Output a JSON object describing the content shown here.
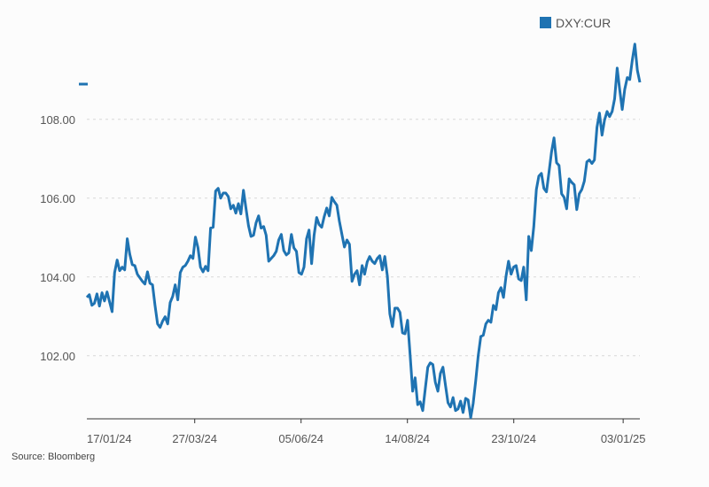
{
  "chart_data": {
    "type": "line",
    "title": "",
    "xlabel": "",
    "ylabel": "",
    "legend": {
      "position": "top-right",
      "entries": [
        "DXY:CUR"
      ]
    },
    "colors": {
      "series": "#1f73b2",
      "grid": "#d8d8d8",
      "axis": "#333333"
    },
    "grid": true,
    "ylim": [
      100.4,
      110.13
    ],
    "x_range": [
      "2024-01-16",
      "2025-01-14"
    ],
    "y_ticks": [
      {
        "value": 102,
        "label": "102.00"
      },
      {
        "value": 104,
        "label": "104.00"
      },
      {
        "value": 106,
        "label": "106.00"
      },
      {
        "value": 108,
        "label": "108.00"
      }
    ],
    "x_ticks": [
      {
        "date": "2024-01-17",
        "label": "17/01/24"
      },
      {
        "date": "2024-03-27",
        "label": "27/03/24"
      },
      {
        "date": "2024-06-05",
        "label": "05/06/24"
      },
      {
        "date": "2024-08-14",
        "label": "14/08/24"
      },
      {
        "date": "2024-10-23",
        "label": "23/10/24"
      },
      {
        "date": "2025-01-03",
        "label": "03/01/25"
      }
    ],
    "last_value_marker": 108.94,
    "series": [
      {
        "name": "DXY:CUR",
        "values": [
          103.48,
          103.55,
          103.28,
          103.33,
          103.57,
          103.26,
          103.6,
          103.39,
          103.62,
          103.37,
          103.12,
          104.11,
          104.43,
          104.16,
          104.25,
          104.18,
          104.97,
          104.58,
          104.31,
          104.29,
          104.07,
          103.98,
          103.89,
          103.82,
          104.13,
          103.84,
          103.8,
          103.28,
          102.81,
          102.72,
          102.88,
          102.99,
          102.81,
          103.35,
          103.51,
          103.8,
          103.42,
          104.11,
          104.25,
          104.29,
          104.4,
          104.54,
          104.47,
          105.01,
          104.74,
          104.25,
          104.13,
          104.27,
          104.16,
          105.24,
          105.26,
          106.18,
          106.25,
          106.0,
          106.13,
          106.13,
          106.04,
          105.73,
          105.82,
          105.62,
          105.86,
          105.6,
          106.2,
          105.75,
          105.3,
          105.03,
          105.06,
          105.37,
          105.55,
          105.24,
          105.28,
          105.06,
          104.4,
          104.47,
          104.54,
          104.65,
          104.94,
          105.08,
          104.67,
          104.56,
          104.61,
          105.08,
          104.74,
          104.65,
          104.11,
          104.07,
          104.25,
          104.97,
          105.19,
          104.34,
          105.06,
          105.51,
          105.33,
          105.26,
          105.53,
          105.75,
          105.55,
          106.02,
          105.91,
          105.82,
          105.42,
          105.08,
          104.76,
          104.94,
          104.83,
          103.89,
          104.07,
          104.16,
          103.8,
          104.29,
          104.07,
          104.38,
          104.52,
          104.4,
          104.34,
          104.47,
          104.54,
          104.18,
          104.52,
          104.02,
          103.06,
          102.74,
          103.21,
          103.21,
          103.1,
          102.58,
          102.56,
          102.9,
          102.04,
          101.1,
          101.44,
          100.76,
          100.83,
          100.61,
          101.15,
          101.71,
          101.82,
          101.78,
          101.33,
          101.1,
          101.55,
          101.71,
          101.26,
          100.81,
          100.7,
          100.94,
          100.61,
          100.65,
          100.85,
          100.56,
          100.92,
          100.88,
          100.43,
          100.79,
          101.37,
          102.0,
          102.49,
          102.52,
          102.81,
          102.9,
          102.85,
          103.28,
          103.17,
          103.6,
          103.73,
          103.48,
          104.02,
          104.4,
          104.07,
          104.25,
          104.29,
          103.95,
          103.91,
          104.25,
          103.42,
          105.03,
          104.67,
          105.28,
          106.22,
          106.56,
          106.63,
          106.25,
          106.16,
          106.65,
          107.17,
          107.53,
          106.9,
          106.83,
          106.11,
          106.02,
          105.73,
          106.49,
          106.4,
          106.34,
          105.71,
          106.11,
          106.22,
          106.43,
          106.92,
          106.97,
          106.88,
          106.97,
          107.8,
          108.16,
          107.6,
          107.98,
          108.2,
          108.07,
          108.2,
          108.52,
          109.3,
          108.76,
          108.25,
          108.76,
          109.06,
          109.01,
          109.51,
          109.91,
          109.24,
          108.94
        ]
      }
    ]
  },
  "source": "Source: Bloomberg"
}
